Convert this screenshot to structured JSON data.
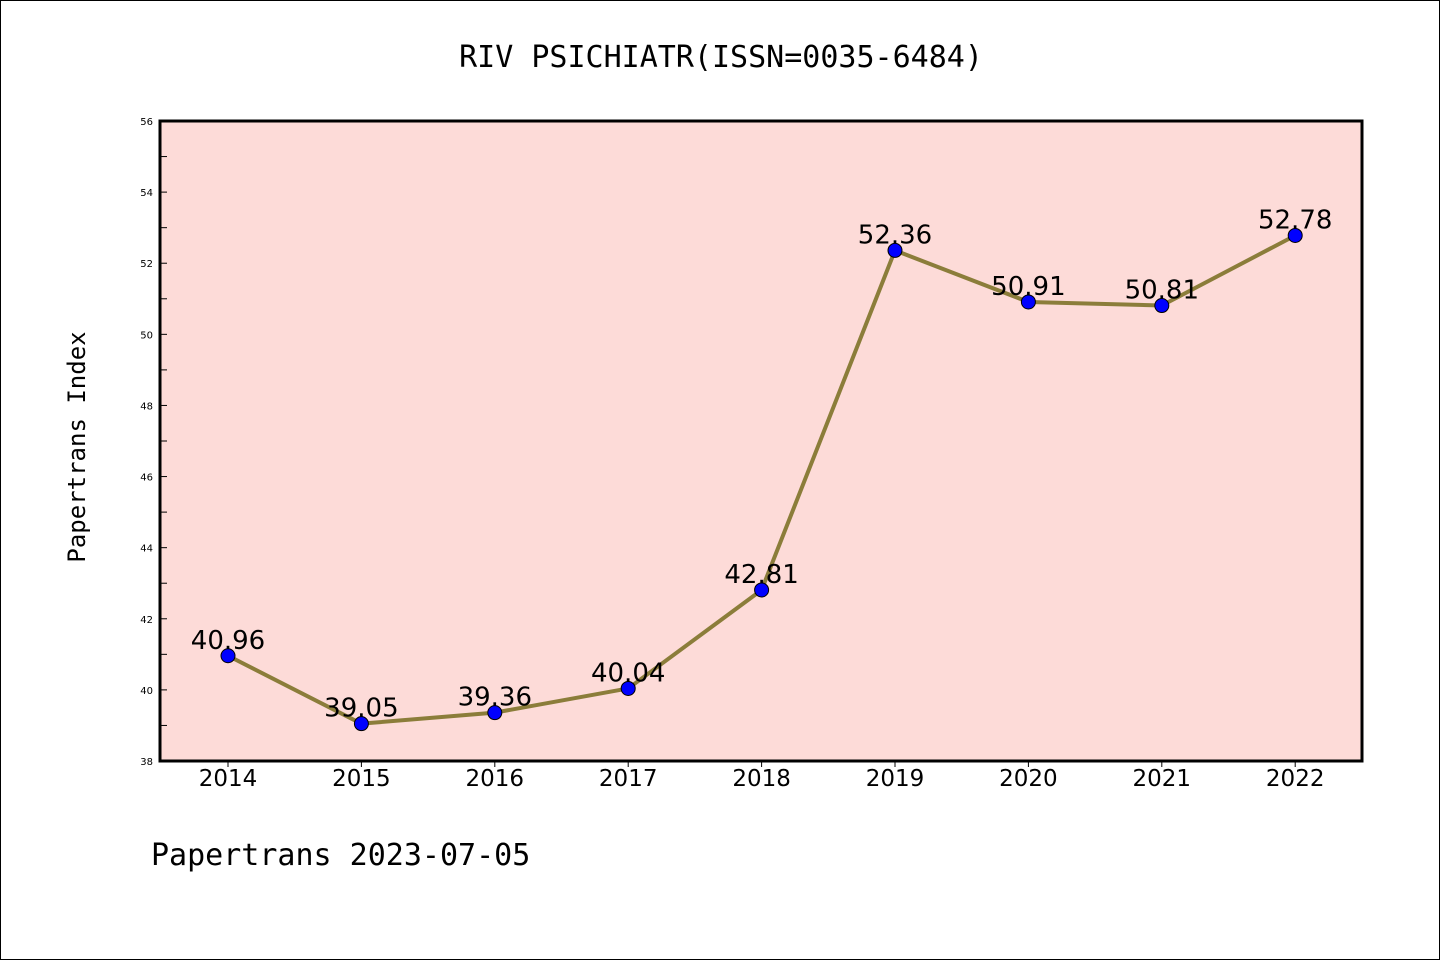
{
  "chart_data": {
    "type": "line",
    "title": "RIV PSICHIATR(ISSN=0035-6484)",
    "xlabel": "",
    "ylabel": "Papertrans Index",
    "categories": [
      "2014",
      "2015",
      "2016",
      "2017",
      "2018",
      "2019",
      "2020",
      "2021",
      "2022"
    ],
    "series": [
      {
        "values": [
          40.96,
          39.05,
          39.36,
          40.04,
          42.81,
          52.36,
          50.91,
          50.81,
          52.78
        ]
      }
    ],
    "data_labels": [
      "40.96",
      "39.05",
      "39.36",
      "40.04",
      "42.81",
      "52.36",
      "50.91",
      "50.81",
      "52.78"
    ],
    "ylim": [
      38,
      56
    ],
    "yticks": [
      "38",
      "40",
      "42",
      "44",
      "46",
      "48",
      "50",
      "52",
      "54",
      "56"
    ],
    "grid": false,
    "plot_background": "#fddbd8",
    "line_color": "#8b7d3a",
    "marker_color": "#0000ff"
  },
  "footer": {
    "text": "Papertrans 2023-07-05"
  }
}
